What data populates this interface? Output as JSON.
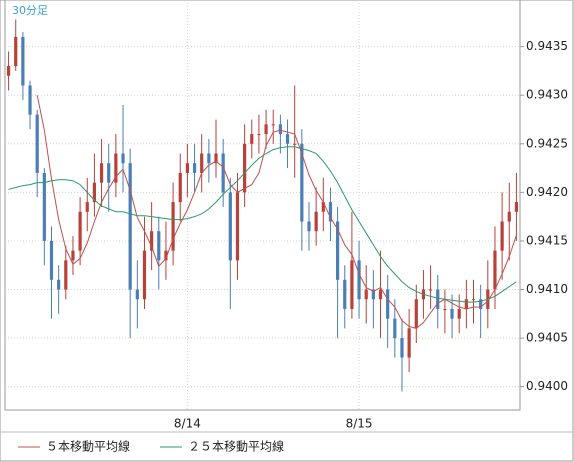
{
  "chart_data": {
    "type": "candlestick",
    "title": "30分足",
    "categories": [
      null,
      null,
      null,
      null,
      null,
      null,
      null,
      null,
      null,
      null,
      null,
      null,
      null,
      null,
      null,
      null,
      null,
      null,
      null,
      null,
      null,
      null,
      null,
      null,
      null,
      "8/14",
      null,
      null,
      null,
      null,
      null,
      null,
      null,
      null,
      null,
      null,
      null,
      null,
      null,
      null,
      null,
      null,
      null,
      null,
      null,
      null,
      null,
      null,
      null,
      "8/15",
      null,
      null,
      null,
      null,
      null,
      null,
      null,
      null,
      null,
      null,
      null,
      null,
      null,
      null,
      null,
      null,
      null,
      null,
      null,
      null,
      null,
      null
    ],
    "open": [
      0.9432,
      0.9433,
      0.9436,
      0.9431,
      0.9428,
      0.9422,
      0.9415,
      0.9411,
      0.941,
      0.9413,
      0.9414,
      0.9418,
      0.9419,
      0.9421,
      0.9423,
      0.9421,
      0.9424,
      0.9423,
      0.941,
      0.9409,
      0.9414,
      0.9416,
      0.9413,
      0.9414,
      0.9419,
      0.9422,
      0.9423,
      0.9422,
      0.9424,
      0.9423,
      0.9424,
      0.942,
      0.9413,
      0.942,
      0.9425,
      0.9426,
      0.9426,
      0.9427,
      0.9427,
      0.9426,
      0.9425,
      0.9425,
      0.9417,
      0.9416,
      0.9418,
      0.9419,
      0.9417,
      0.9411,
      0.9408,
      0.9413,
      0.9409,
      0.941,
      0.9409,
      0.941,
      0.9407,
      0.9405,
      0.9403,
      0.9406,
      0.9409,
      0.941,
      0.941,
      0.9408,
      0.9408,
      0.9407,
      0.9408,
      0.9409,
      0.9409,
      0.9408,
      0.941,
      0.9414,
      0.9417,
      0.9418
    ],
    "high": [
      0.94345,
      0.94378,
      0.94365,
      0.94315,
      0.94285,
      0.94225,
      0.94165,
      0.94125,
      0.94145,
      0.94155,
      0.94195,
      0.94215,
      0.9424,
      0.94255,
      0.9425,
      0.9426,
      0.9429,
      0.94245,
      0.9413,
      0.94175,
      0.9419,
      0.94175,
      0.9417,
      0.9421,
      0.9424,
      0.9425,
      0.9425,
      0.9426,
      0.94255,
      0.94275,
      0.94255,
      0.94215,
      0.9422,
      0.9427,
      0.94275,
      0.9428,
      0.94285,
      0.94285,
      0.9428,
      0.94275,
      0.9431,
      0.94265,
      0.9419,
      0.94205,
      0.94215,
      0.94205,
      0.94185,
      0.94125,
      0.9418,
      0.9415,
      0.94125,
      0.9412,
      0.9414,
      0.94115,
      0.9409,
      0.9407,
      0.9408,
      0.94105,
      0.9412,
      0.94125,
      0.94115,
      0.941,
      0.94095,
      0.94095,
      0.9411,
      0.9411,
      0.94105,
      0.9413,
      0.94165,
      0.942,
      0.9421,
      0.9422
    ],
    "low": [
      0.94305,
      0.94325,
      0.94295,
      0.94265,
      0.94195,
      0.94125,
      0.9407,
      0.94075,
      0.9409,
      0.94115,
      0.94125,
      0.9416,
      0.94175,
      0.94185,
      0.9418,
      0.94195,
      0.942,
      0.9405,
      0.9406,
      0.9408,
      0.9412,
      0.941,
      0.9411,
      0.94125,
      0.9417,
      0.94195,
      0.942,
      0.942,
      0.9421,
      0.94215,
      0.94185,
      0.9408,
      0.9411,
      0.94185,
      0.94235,
      0.9424,
      0.94245,
      0.9425,
      0.9424,
      0.94225,
      0.94215,
      0.9414,
      0.9414,
      0.94145,
      0.9416,
      0.9415,
      0.9405,
      0.9406,
      0.9407,
      0.9407,
      0.94065,
      0.9406,
      0.9405,
      0.9404,
      0.9403,
      0.93995,
      0.94015,
      0.94045,
      0.9407,
      0.9408,
      0.9406,
      0.94055,
      0.9405,
      0.94055,
      0.9406,
      0.94065,
      0.9405,
      0.9406,
      0.9408,
      0.9411,
      0.9413,
      0.9415
    ],
    "close": [
      0.9433,
      0.9436,
      0.9431,
      0.9428,
      0.9422,
      0.9415,
      0.9411,
      0.941,
      0.9413,
      0.9414,
      0.9418,
      0.9419,
      0.9421,
      0.9423,
      0.9421,
      0.9424,
      0.9423,
      0.941,
      0.9409,
      0.9414,
      0.9416,
      0.9413,
      0.9414,
      0.9419,
      0.9422,
      0.9423,
      0.9422,
      0.9424,
      0.9423,
      0.9424,
      0.942,
      0.9413,
      0.942,
      0.9425,
      0.9426,
      0.9426,
      0.9427,
      0.9427,
      0.9426,
      0.9425,
      0.9425,
      0.9417,
      0.9416,
      0.9418,
      0.9419,
      0.9417,
      0.9411,
      0.9408,
      0.9413,
      0.9409,
      0.941,
      0.9409,
      0.941,
      0.9407,
      0.9405,
      0.9403,
      0.9406,
      0.9409,
      0.941,
      0.941,
      0.9408,
      0.9408,
      0.9407,
      0.9408,
      0.9409,
      0.9409,
      0.9408,
      0.941,
      0.9414,
      0.9417,
      0.9418,
      0.9419
    ],
    "up_color": "#b8413a",
    "down_color": "#4a7eb5",
    "series": [
      {
        "name": "５本移動平均線",
        "color": "#c0504d",
        "values": [
          null,
          null,
          null,
          null,
          0.943,
          0.94264,
          0.94214,
          0.94172,
          0.94142,
          0.94126,
          0.94132,
          0.94148,
          0.9417,
          0.9419,
          0.94204,
          0.94216,
          0.94224,
          0.94202,
          0.94174,
          0.9416,
          0.94144,
          0.94124,
          0.94132,
          0.94152,
          0.94168,
          0.94182,
          0.942,
          0.9422,
          0.94228,
          0.94232,
          0.94226,
          0.94208,
          0.942,
          0.94204,
          0.94208,
          0.9422,
          0.94248,
          0.94262,
          0.94264,
          0.94262,
          0.9426,
          0.9424,
          0.94218,
          0.94202,
          0.9419,
          0.94174,
          0.94162,
          0.94146,
          0.94136,
          0.94116,
          0.94102,
          0.94098,
          0.94102,
          0.9409,
          0.94082,
          0.94068,
          0.94062,
          0.9406,
          0.94066,
          0.94076,
          0.94086,
          0.9409,
          0.94086,
          0.94082,
          0.9408,
          0.94082,
          0.94082,
          0.94088,
          0.941,
          0.94116,
          0.94134,
          0.94156
        ]
      },
      {
        "name": "２５本移動平均線",
        "color": "#2a9a6a",
        "values": [
          0.94203,
          0.94205,
          0.94207,
          0.94208,
          0.9421,
          0.9421,
          0.94212,
          0.94213,
          0.94213,
          0.94212,
          0.94208,
          0.942,
          0.94192,
          0.94186,
          0.94183,
          0.9418,
          0.9418,
          0.94178,
          0.94176,
          0.94176,
          0.94175,
          0.94174,
          0.94173,
          0.94172,
          0.94172,
          0.94173,
          0.94175,
          0.94178,
          0.94183,
          0.9419,
          0.94198,
          0.94205,
          0.94212,
          0.9422,
          0.94228,
          0.94235,
          0.9424,
          0.94244,
          0.94246,
          0.94247,
          0.94247,
          0.94245,
          0.94243,
          0.9424,
          0.94232,
          0.94222,
          0.9421,
          0.94196,
          0.94182,
          0.9417,
          0.94158,
          0.94146,
          0.94134,
          0.94124,
          0.94116,
          0.94108,
          0.94102,
          0.94098,
          0.94095,
          0.94093,
          0.94091,
          0.9409,
          0.94089,
          0.94088,
          0.94087,
          0.94087,
          0.94088,
          0.9409,
          0.94093,
          0.94098,
          0.94103,
          0.94108
        ]
      }
    ],
    "ylim": [
      0.93976,
      0.94398
    ],
    "yticks": [
      {
        "value": 0.94,
        "label": "0.9400"
      },
      {
        "value": 0.9405,
        "label": "0.9405"
      },
      {
        "value": 0.941,
        "label": "0.9410"
      },
      {
        "value": 0.9415,
        "label": "0.9415"
      },
      {
        "value": 0.942,
        "label": "0.9420"
      },
      {
        "value": 0.9425,
        "label": "0.9425"
      },
      {
        "value": 0.943,
        "label": "0.9430"
      },
      {
        "value": 0.9435,
        "label": "0.9435"
      }
    ],
    "grid": true
  }
}
